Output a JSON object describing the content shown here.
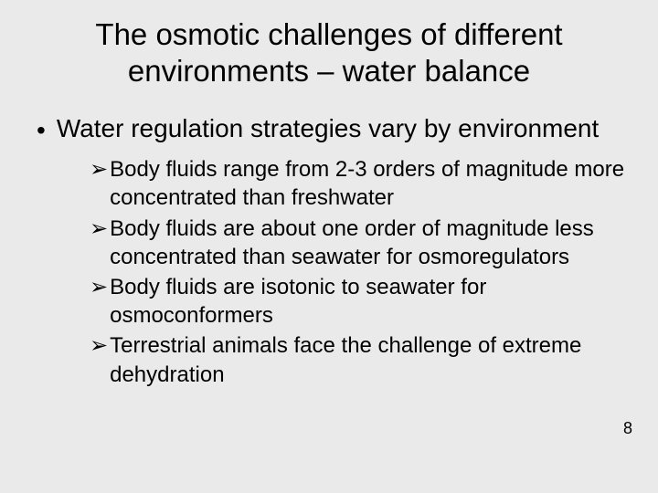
{
  "title": "The osmotic challenges of different environments – water balance",
  "level1": {
    "bullet": "•",
    "text": "Water regulation strategies vary by environment"
  },
  "level2": {
    "marker": "➢",
    "items": [
      "Body fluids range from 2-3 orders of magnitude more concentrated than freshwater",
      "Body fluids are about one order of magnitude less concentrated than seawater for osmoregulators",
      "Body fluids are isotonic to seawater for osmoconformers",
      "Terrestrial animals face the challenge of extreme dehydration"
    ]
  },
  "pageNumber": "8"
}
